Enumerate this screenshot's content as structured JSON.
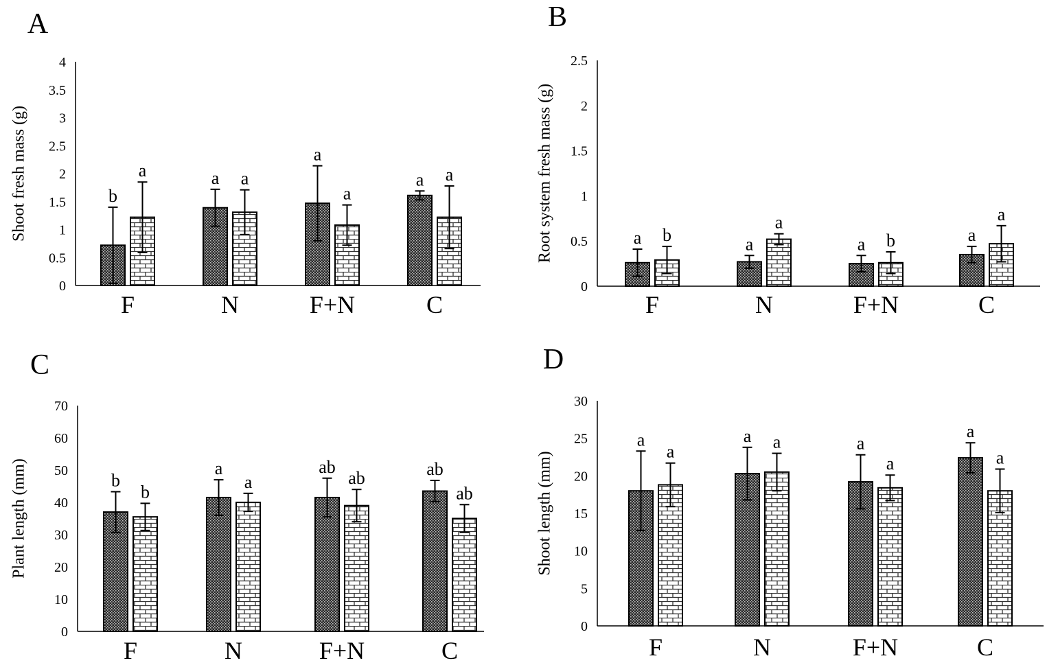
{
  "chart_data": [
    {
      "type": "bar",
      "panel_label": "A",
      "ylabel": "Shoot fresh mass (g)",
      "categories": [
        "F",
        "N",
        "F+N",
        "C"
      ],
      "ylim": [
        0,
        4
      ],
      "yticks": [
        "0",
        "0.5",
        "1",
        "1.5",
        "2",
        "2.5",
        "3",
        "3.5",
        "4"
      ],
      "grid": false,
      "series": [
        {
          "pattern": "dark-dotted",
          "values": [
            0.72,
            1.39,
            1.47,
            1.61
          ],
          "errors": [
            0.68,
            0.33,
            0.67,
            0.08
          ],
          "letters": [
            "b",
            "a",
            "a",
            "a"
          ]
        },
        {
          "pattern": "brick",
          "values": [
            1.22,
            1.31,
            1.08,
            1.22
          ],
          "errors": [
            0.63,
            0.4,
            0.36,
            0.56
          ],
          "letters": [
            "a",
            "a",
            "a",
            "a"
          ]
        }
      ]
    },
    {
      "type": "bar",
      "panel_label": "B",
      "ylabel": "Root system fresh mass (g)",
      "categories": [
        "F",
        "N",
        "F+N",
        "C"
      ],
      "ylim": [
        0,
        2.5
      ],
      "yticks": [
        "0",
        "0.5",
        "1",
        "1.5",
        "2",
        "2.5"
      ],
      "grid": false,
      "series": [
        {
          "pattern": "dark-dotted",
          "values": [
            0.26,
            0.27,
            0.25,
            0.35
          ],
          "errors": [
            0.15,
            0.07,
            0.09,
            0.09
          ],
          "letters": [
            "a",
            "a",
            "a",
            "a"
          ]
        },
        {
          "pattern": "brick",
          "values": [
            0.29,
            0.52,
            0.26,
            0.47
          ],
          "errors": [
            0.15,
            0.06,
            0.12,
            0.2
          ],
          "letters": [
            "b",
            "a",
            "b",
            "a"
          ]
        }
      ]
    },
    {
      "type": "bar",
      "panel_label": "C",
      "ylabel": "Plant length  (mm)",
      "categories": [
        "F",
        "N",
        "F+N",
        "C"
      ],
      "ylim": [
        0,
        70
      ],
      "yticks": [
        "0",
        "10",
        "20",
        "30",
        "40",
        "50",
        "60",
        "70"
      ],
      "grid": false,
      "series": [
        {
          "pattern": "dark-dotted",
          "values": [
            37,
            41.5,
            41.5,
            43.5
          ],
          "errors": [
            6.3,
            5.5,
            6,
            3.3
          ],
          "letters": [
            "b",
            "a",
            "ab",
            "ab"
          ]
        },
        {
          "pattern": "brick",
          "values": [
            35.5,
            40,
            39,
            35
          ],
          "errors": [
            4.2,
            2.8,
            5,
            4.3
          ],
          "letters": [
            "b",
            "a",
            "ab",
            "ab"
          ]
        }
      ]
    },
    {
      "type": "bar",
      "panel_label": "D",
      "ylabel": "Shoot length  (mm)",
      "categories": [
        "F",
        "N",
        "F+N",
        "C"
      ],
      "ylim": [
        0,
        30
      ],
      "yticks": [
        "0",
        "5",
        "10",
        "15",
        "20",
        "25",
        "30"
      ],
      "grid": false,
      "series": [
        {
          "pattern": "dark-dotted",
          "values": [
            18,
            20.3,
            19.2,
            22.4
          ],
          "errors": [
            5.3,
            3.5,
            3.6,
            2.0
          ],
          "letters": [
            "a",
            "a",
            "a",
            "a"
          ]
        },
        {
          "pattern": "brick",
          "values": [
            18.8,
            20.5,
            18.4,
            18
          ],
          "errors": [
            2.9,
            2.5,
            1.7,
            2.9
          ],
          "letters": [
            "a",
            "a",
            "a",
            "a"
          ]
        }
      ]
    }
  ]
}
